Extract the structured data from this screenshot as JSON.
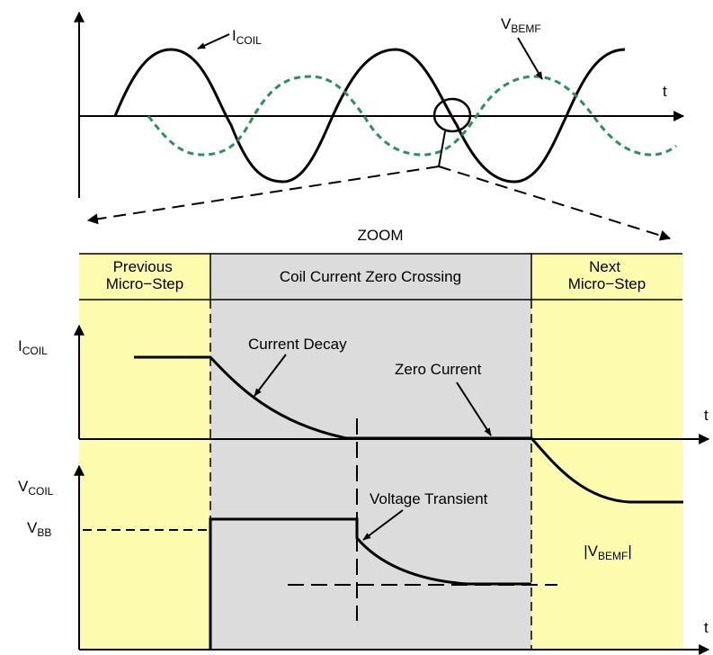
{
  "top_plot": {
    "coil_label": "I",
    "coil_sub": "COIL",
    "bemf_label": "V",
    "bemf_sub": "BEMF",
    "t_label": "t"
  },
  "zoom_label": "ZOOM",
  "regions": {
    "previous": [
      "Previous",
      "Micro−Step"
    ],
    "crossing": "Coil Current Zero Crossing",
    "next": [
      "Next",
      "Micro−Step"
    ]
  },
  "current_plot": {
    "y_label": "I",
    "y_sub": "COIL",
    "t_label": "t",
    "annot_decay": "Current Decay",
    "annot_zero": "Zero Current"
  },
  "voltage_plot": {
    "y_label": "V",
    "y_sub": "COIL",
    "vbb_label": "V",
    "vbb_sub": "BB",
    "t_label": "t",
    "annot_transient": "Voltage Transient",
    "bemf_abs_pre": "|V",
    "bemf_abs_sub": "BEMF",
    "bemf_abs_post": "|"
  },
  "colors": {
    "yellow": "#fdfbae",
    "gray": "#dcdcdc",
    "green_dashed": "#2f8f5b"
  }
}
